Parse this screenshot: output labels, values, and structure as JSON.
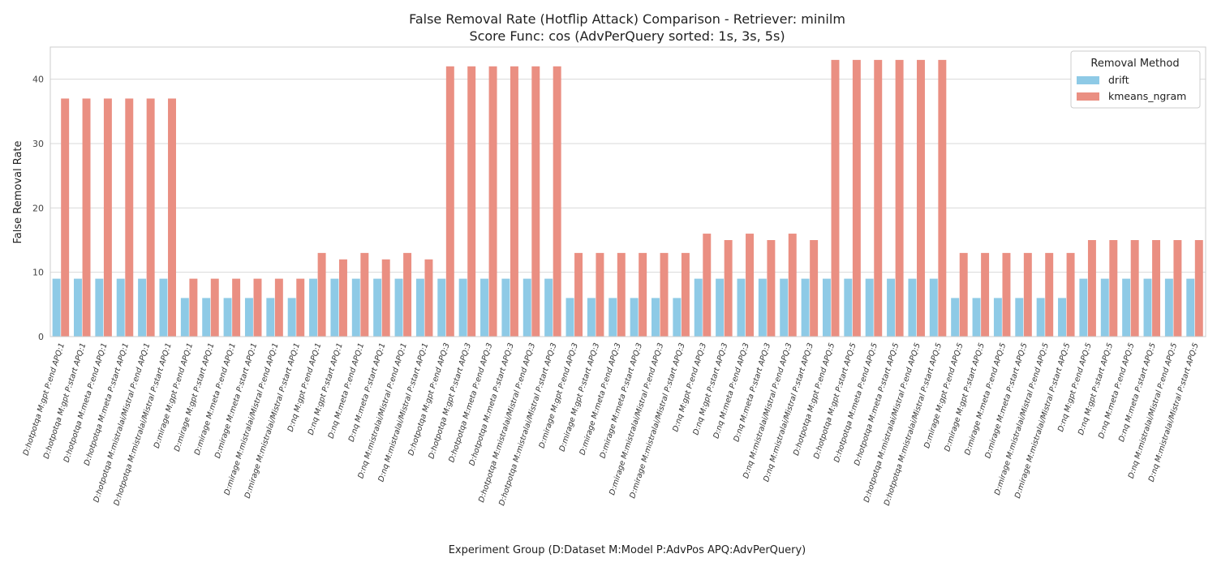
{
  "chart_data": {
    "type": "bar",
    "title": "False Removal Rate (Hotflip Attack) Comparison - Retriever: minilm",
    "subtitle": "Score Func: cos (AdvPerQuery sorted: 1s, 3s, 5s)",
    "xlabel": "Experiment Group (D:Dataset M:Model P:AdvPos APQ:AdvPerQuery)",
    "ylabel": "False Removal Rate",
    "ylim": [
      0,
      45
    ],
    "yticks": [
      0,
      10,
      20,
      30,
      40
    ],
    "grid": true,
    "legend": {
      "title": "Removal Method",
      "position": "top-right"
    },
    "categories": [
      "D:hotpotqa M:gpt P:end APQ:1",
      "D:hotpotqa M:gpt P:start APQ:1",
      "D:hotpotqa M:meta P:end APQ:1",
      "D:hotpotqa M:meta P:start APQ:1",
      "D:hotpotqa M:mistralai/Mistral P:end APQ:1",
      "D:hotpotqa M:mistralai/Mistral P:start APQ:1",
      "D:mirage M:gpt P:end APQ:1",
      "D:mirage M:gpt P:start APQ:1",
      "D:mirage M:meta P:end APQ:1",
      "D:mirage M:meta P:start APQ:1",
      "D:mirage M:mistralai/Mistral P:end APQ:1",
      "D:mirage M:mistralai/Mistral P:start APQ:1",
      "D:nq M:gpt P:end APQ:1",
      "D:nq M:gpt P:start APQ:1",
      "D:nq M:meta P:end APQ:1",
      "D:nq M:meta P:start APQ:1",
      "D:nq M:mistralai/Mistral P:end APQ:1",
      "D:nq M:mistralai/Mistral P:start APQ:1",
      "D:hotpotqa M:gpt P:end APQ:3",
      "D:hotpotqa M:gpt P:start APQ:3",
      "D:hotpotqa M:meta P:end APQ:3",
      "D:hotpotqa M:meta P:start APQ:3",
      "D:hotpotqa M:mistralai/Mistral P:end APQ:3",
      "D:hotpotqa M:mistralai/Mistral P:start APQ:3",
      "D:mirage M:gpt P:end APQ:3",
      "D:mirage M:gpt P:start APQ:3",
      "D:mirage M:meta P:end APQ:3",
      "D:mirage M:meta P:start APQ:3",
      "D:mirage M:mistralai/Mistral P:end APQ:3",
      "D:mirage M:mistralai/Mistral P:start APQ:3",
      "D:nq M:gpt P:end APQ:3",
      "D:nq M:gpt P:start APQ:3",
      "D:nq M:meta P:end APQ:3",
      "D:nq M:meta P:start APQ:3",
      "D:nq M:mistralai/Mistral P:end APQ:3",
      "D:nq M:mistralai/Mistral P:start APQ:3",
      "D:hotpotqa M:gpt P:end APQ:5",
      "D:hotpotqa M:gpt P:start APQ:5",
      "D:hotpotqa M:meta P:end APQ:5",
      "D:hotpotqa M:meta P:start APQ:5",
      "D:hotpotqa M:mistralai/Mistral P:end APQ:5",
      "D:hotpotqa M:mistralai/Mistral P:start APQ:5",
      "D:mirage M:gpt P:end APQ:5",
      "D:mirage M:gpt P:start APQ:5",
      "D:mirage M:meta P:end APQ:5",
      "D:mirage M:meta P:start APQ:5",
      "D:mirage M:mistralai/Mistral P:end APQ:5",
      "D:mirage M:mistralai/Mistral P:start APQ:5",
      "D:nq M:gpt P:end APQ:5",
      "D:nq M:gpt P:start APQ:5",
      "D:nq M:meta P:end APQ:5",
      "D:nq M:meta P:start APQ:5",
      "D:nq M:mistralai/Mistral P:end APQ:5",
      "D:nq M:mistralai/Mistral P:start APQ:5"
    ],
    "series": [
      {
        "name": "drift",
        "color": "#8ecae6",
        "values": [
          9,
          9,
          9,
          9,
          9,
          9,
          6,
          6,
          6,
          6,
          6,
          6,
          9,
          9,
          9,
          9,
          9,
          9,
          9,
          9,
          9,
          9,
          9,
          9,
          6,
          6,
          6,
          6,
          6,
          6,
          9,
          9,
          9,
          9,
          9,
          9,
          9,
          9,
          9,
          9,
          9,
          9,
          6,
          6,
          6,
          6,
          6,
          6,
          9,
          9,
          9,
          9,
          9,
          9
        ]
      },
      {
        "name": "kmeans_ngram",
        "color": "#ea8f82",
        "values": [
          37,
          37,
          37,
          37,
          37,
          37,
          9,
          9,
          9,
          9,
          9,
          9,
          13,
          12,
          13,
          12,
          13,
          12,
          42,
          42,
          42,
          42,
          42,
          42,
          13,
          13,
          13,
          13,
          13,
          13,
          16,
          15,
          16,
          15,
          16,
          15,
          43,
          43,
          43,
          43,
          43,
          43,
          13,
          13,
          13,
          13,
          13,
          13,
          15,
          15,
          15,
          15,
          15,
          15
        ]
      }
    ]
  }
}
